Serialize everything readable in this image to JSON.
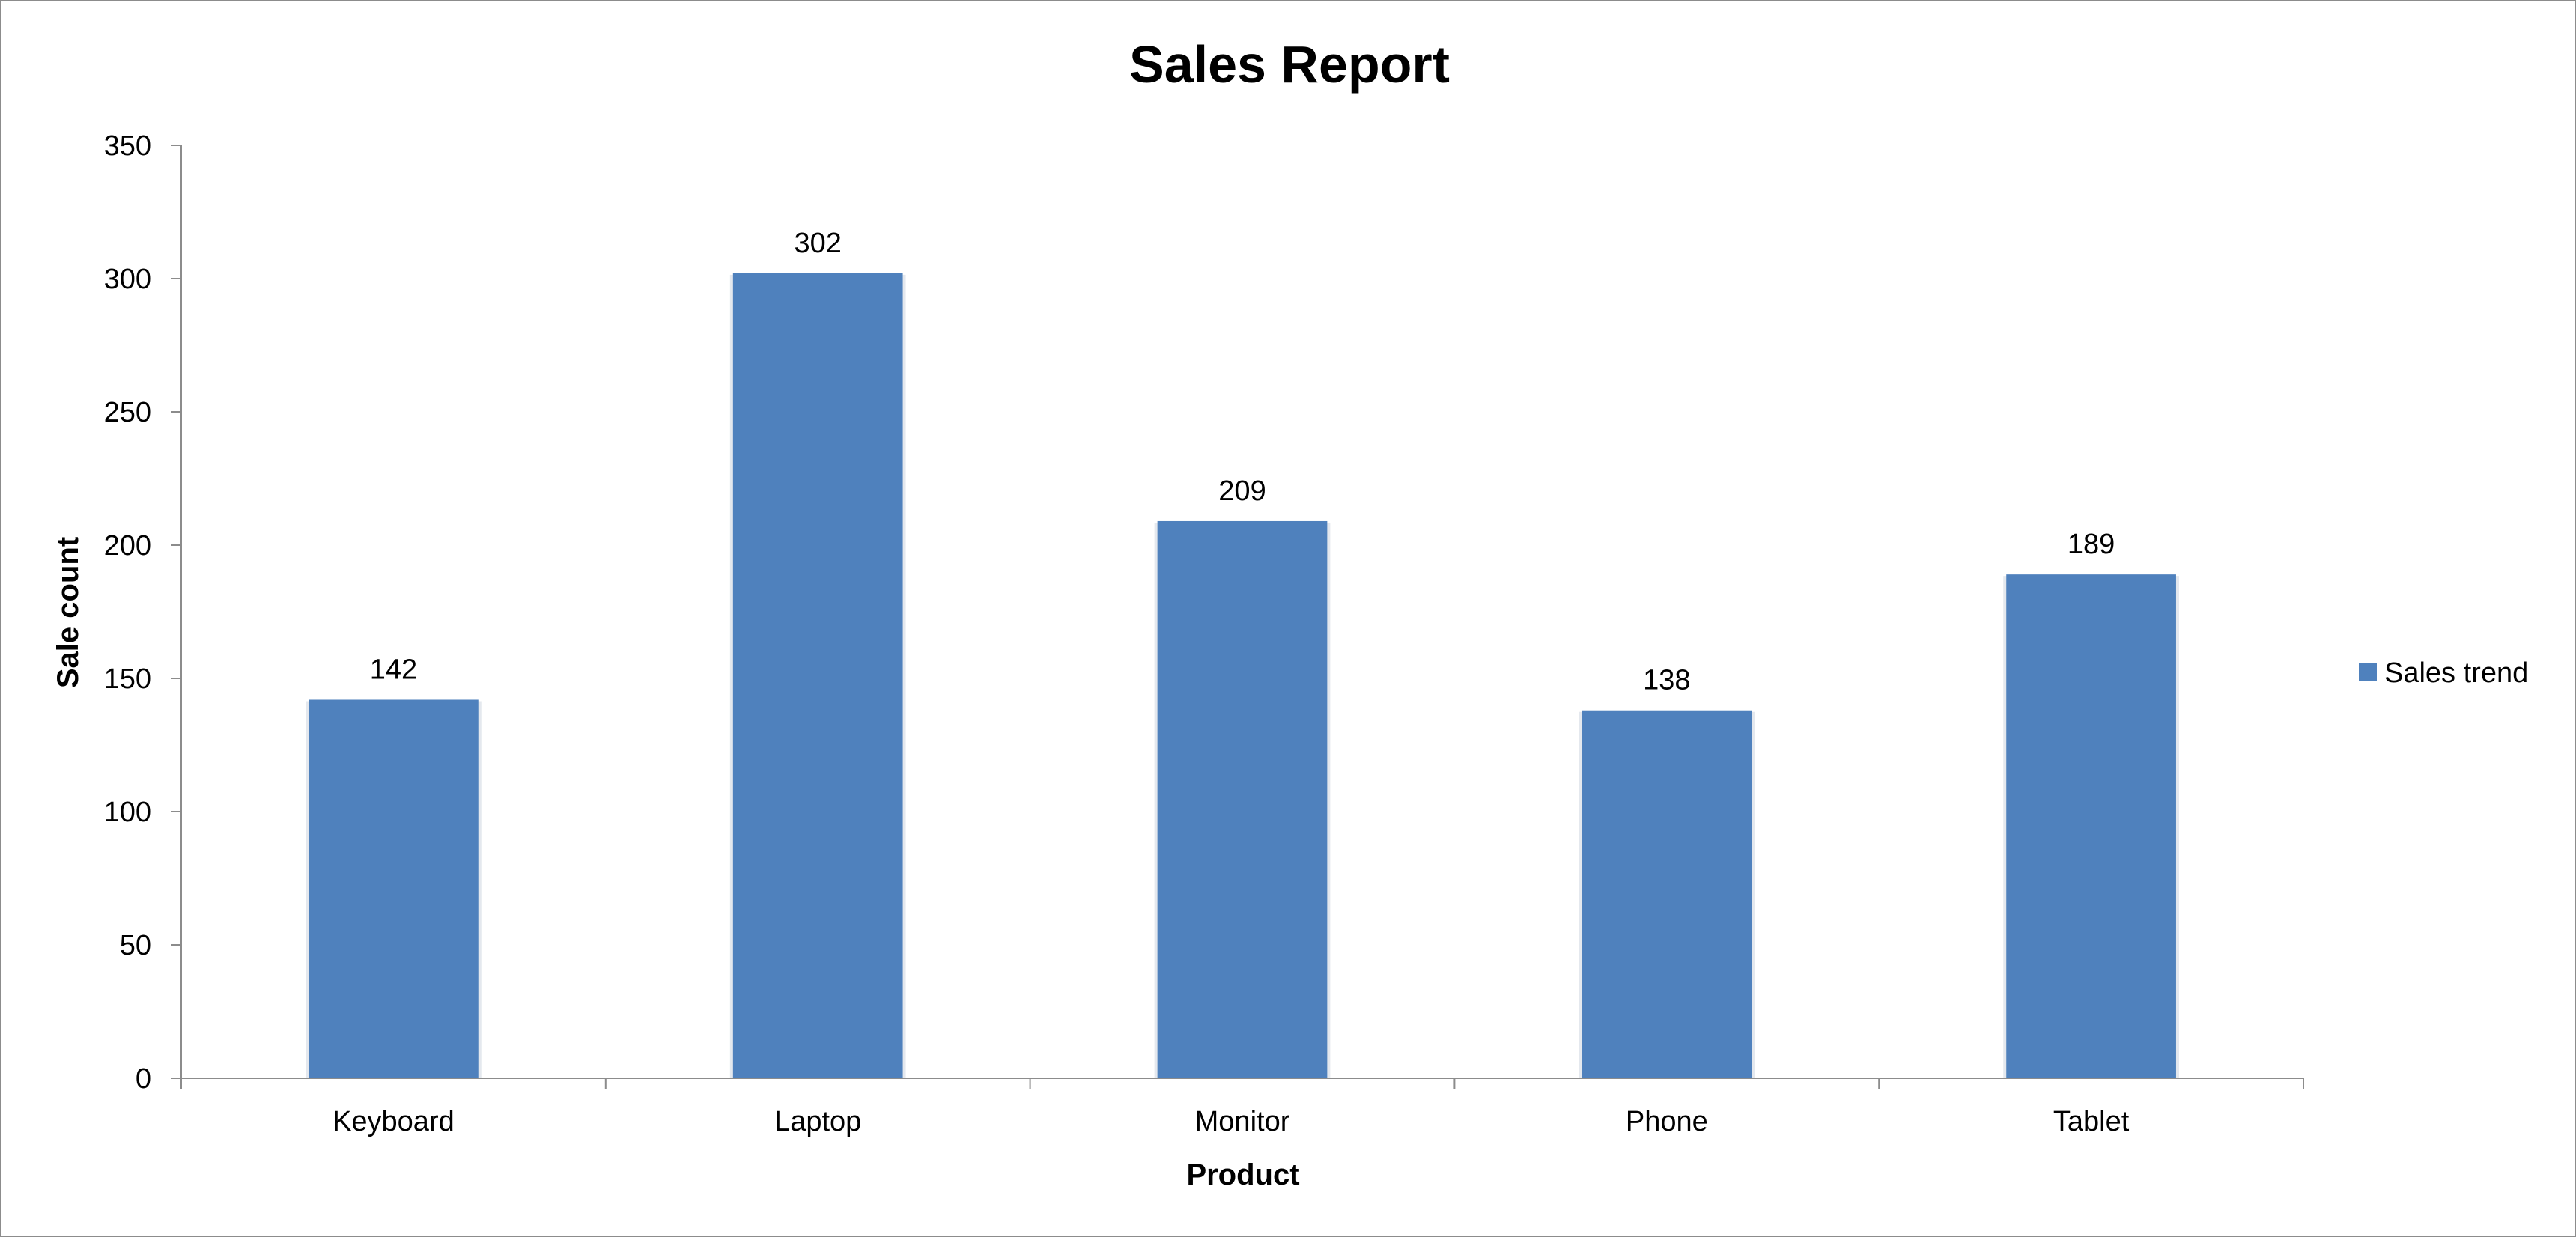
{
  "colors": {
    "bar": "#4f81bd",
    "axis": "#8c8c8c",
    "frame": "#8c8c8c",
    "background": "#ffffff"
  },
  "chart_data": {
    "type": "bar",
    "title": "Sales Report",
    "xlabel": "Product",
    "ylabel": "Sale count",
    "categories": [
      "Keyboard",
      "Laptop",
      "Monitor",
      "Phone",
      "Tablet"
    ],
    "series": [
      {
        "name": "Sales trend",
        "values": [
          142,
          302,
          209,
          138,
          189
        ]
      }
    ],
    "ylim": [
      0,
      350
    ],
    "yticks": [
      0,
      50,
      100,
      150,
      200,
      250,
      300,
      350
    ],
    "grid": false,
    "legend": "right",
    "data_labels": true
  }
}
